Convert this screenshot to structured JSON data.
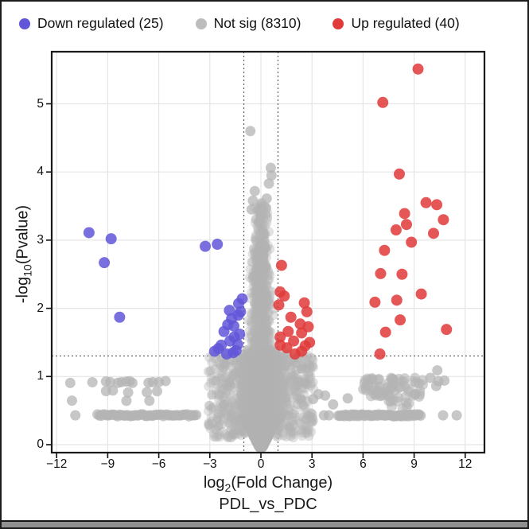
{
  "legend": {
    "items": [
      {
        "key": "down",
        "label": "Down regulated (25)",
        "color": "#6156d8"
      },
      {
        "key": "notsig",
        "label": "Not sig (8310)",
        "color": "#bdbdbd"
      },
      {
        "key": "up",
        "label": "Up regulated (40)",
        "color": "#e03a3a"
      }
    ]
  },
  "colors": {
    "down": "#6156d8",
    "up": "#e03a3a",
    "not_sig": "#b4b4b4",
    "grid": "#e5e5e5",
    "panel_border": "#1a1a1a",
    "threshold_line": "#444444",
    "text": "#111111"
  },
  "chart_data": {
    "type": "scatter",
    "subtype": "volcano",
    "title": "",
    "xlabel": "log2(Fold Change)",
    "xlabel_parts": {
      "prefix": "log",
      "sub": "2",
      "suffix": "(Fold Change)"
    },
    "xlabel_line2": "PDL_vs_PDC",
    "ylabel": "-log10(Pvalue)",
    "ylabel_parts": {
      "prefix": "-log",
      "sub": "10",
      "suffix": "(Pvalue)"
    },
    "xlim": [
      -12.3,
      13.2
    ],
    "ylim": [
      -0.12,
      5.77
    ],
    "x_ticks": [
      -12,
      -9,
      -6,
      -3,
      0,
      3,
      6,
      9,
      12
    ],
    "y_ticks": [
      0,
      1,
      2,
      3,
      4,
      5
    ],
    "grid": true,
    "legend_position": "top-left",
    "thresholds": {
      "x": [
        -1,
        1
      ],
      "y": 1.301
    },
    "series": [
      {
        "name": "Down regulated",
        "count": 25,
        "color": "#6156d8",
        "points": [
          [
            -10.1,
            3.11
          ],
          [
            -9.2,
            2.67
          ],
          [
            -8.8,
            3.02
          ],
          [
            -8.3,
            1.87
          ],
          [
            -3.27,
            2.91
          ],
          [
            -2.56,
            2.94
          ],
          [
            -1.1,
            2.14
          ],
          [
            -1.31,
            2.07
          ],
          [
            -1.85,
            1.97
          ],
          [
            -1.33,
            1.9
          ],
          [
            -1.59,
            1.74
          ],
          [
            -2.17,
            1.66
          ],
          [
            -1.57,
            1.58
          ],
          [
            -2.33,
            1.46
          ],
          [
            -1.46,
            1.38
          ],
          [
            -2.72,
            1.37
          ],
          [
            -2.01,
            1.33
          ],
          [
            -1.2,
            1.95
          ],
          [
            -1.72,
            1.85
          ],
          [
            -1.95,
            1.76
          ],
          [
            -1.25,
            1.62
          ],
          [
            -1.82,
            1.52
          ],
          [
            -1.36,
            1.47
          ],
          [
            -2.5,
            1.41
          ],
          [
            -1.63,
            1.35
          ]
        ]
      },
      {
        "name": "Up regulated",
        "count": 40,
        "color": "#e03a3a",
        "points": [
          [
            1.21,
            2.63
          ],
          [
            1.13,
            2.24
          ],
          [
            1.37,
            2.18
          ],
          [
            2.55,
            2.08
          ],
          [
            1.05,
            2.05
          ],
          [
            2.7,
            1.95
          ],
          [
            1.76,
            1.87
          ],
          [
            2.31,
            1.77
          ],
          [
            2.78,
            1.73
          ],
          [
            1.6,
            1.66
          ],
          [
            2.39,
            1.64
          ],
          [
            1.13,
            1.58
          ],
          [
            1.92,
            1.52
          ],
          [
            2.86,
            1.5
          ],
          [
            1.13,
            1.46
          ],
          [
            2.6,
            1.45
          ],
          [
            1.52,
            1.42
          ],
          [
            2.39,
            1.37
          ],
          [
            2.0,
            1.33
          ],
          [
            6.7,
            2.09
          ],
          [
            6.99,
            1.33
          ],
          [
            7.03,
            2.51
          ],
          [
            7.16,
            5.02
          ],
          [
            7.26,
            2.85
          ],
          [
            7.32,
            1.65
          ],
          [
            7.94,
            3.15
          ],
          [
            7.98,
            2.12
          ],
          [
            8.13,
            3.97
          ],
          [
            8.18,
            1.83
          ],
          [
            8.29,
            2.5
          ],
          [
            8.44,
            3.39
          ],
          [
            8.55,
            3.23
          ],
          [
            8.84,
            2.97
          ],
          [
            9.23,
            5.51
          ],
          [
            9.42,
            2.21
          ],
          [
            9.7,
            3.55
          ],
          [
            10.14,
            3.1
          ],
          [
            10.33,
            3.52
          ],
          [
            10.72,
            3.3
          ],
          [
            10.9,
            1.69
          ]
        ]
      },
      {
        "name": "Not sig",
        "count": 8310,
        "color": "#b4b4b4",
        "outliers": [
          [
            -0.62,
            4.6
          ],
          [
            0.58,
            4.06
          ],
          [
            0.62,
            3.95
          ],
          [
            0.47,
            3.83
          ],
          [
            -0.36,
            3.72
          ],
          [
            0.34,
            3.61
          ],
          [
            -0.47,
            3.58
          ],
          [
            -0.55,
            3.45
          ],
          [
            0.31,
            3.47
          ],
          [
            0.05,
            3.38
          ],
          [
            10.36,
            1.09
          ],
          [
            10.78,
            0.94
          ],
          [
            10.3,
            0.86
          ],
          [
            9.95,
            0.98
          ],
          [
            10.42,
            0.93
          ]
        ],
        "left_rows": [
          {
            "y": 0.92,
            "xs": [
              -11.2,
              -9.9,
              -9.1,
              -8.85,
              -8.4,
              -8.2,
              -7.9,
              -7.7,
              -7.55,
              -6.6,
              -6.35,
              -6.0,
              -5.6
            ]
          },
          {
            "y": 0.78,
            "xs": [
              -9.1,
              -8.7,
              -7.8,
              -6.7,
              -6.1
            ]
          },
          {
            "y": 0.65,
            "xs": [
              -11.1,
              -7.9,
              -6.55
            ]
          }
        ],
        "left_band": {
          "y": 0.43,
          "x_from": -9.6,
          "x_to": -3.8,
          "n": 55,
          "extra_x": [
            -10.9
          ]
        },
        "right_sparse": [
          [
            3.38,
            0.74
          ],
          [
            3.77,
            0.72
          ],
          [
            3.07,
            0.67
          ],
          [
            4.24,
            0.59
          ],
          [
            5.1,
            0.68
          ]
        ],
        "right_cloud": {
          "x_from": 6.0,
          "x_to": 9.55,
          "y_from": 0.7,
          "y_to": 0.98,
          "n": 65,
          "tail": {
            "x_from": 7.5,
            "x_to": 8.7,
            "y_from": 0.52,
            "y_to": 0.72,
            "n": 10
          }
        },
        "right_band": {
          "y": 0.43,
          "x_from": 4.55,
          "x_to": 9.38,
          "n": 58,
          "extra_x": [
            3.7,
            3.99,
            10.7,
            11.5
          ]
        },
        "central_mass": {
          "n": 5500,
          "seed": 42,
          "shape": "funnel centered at x=0, dense arrow below y=0.45, column to y~3.6"
        }
      }
    ]
  }
}
